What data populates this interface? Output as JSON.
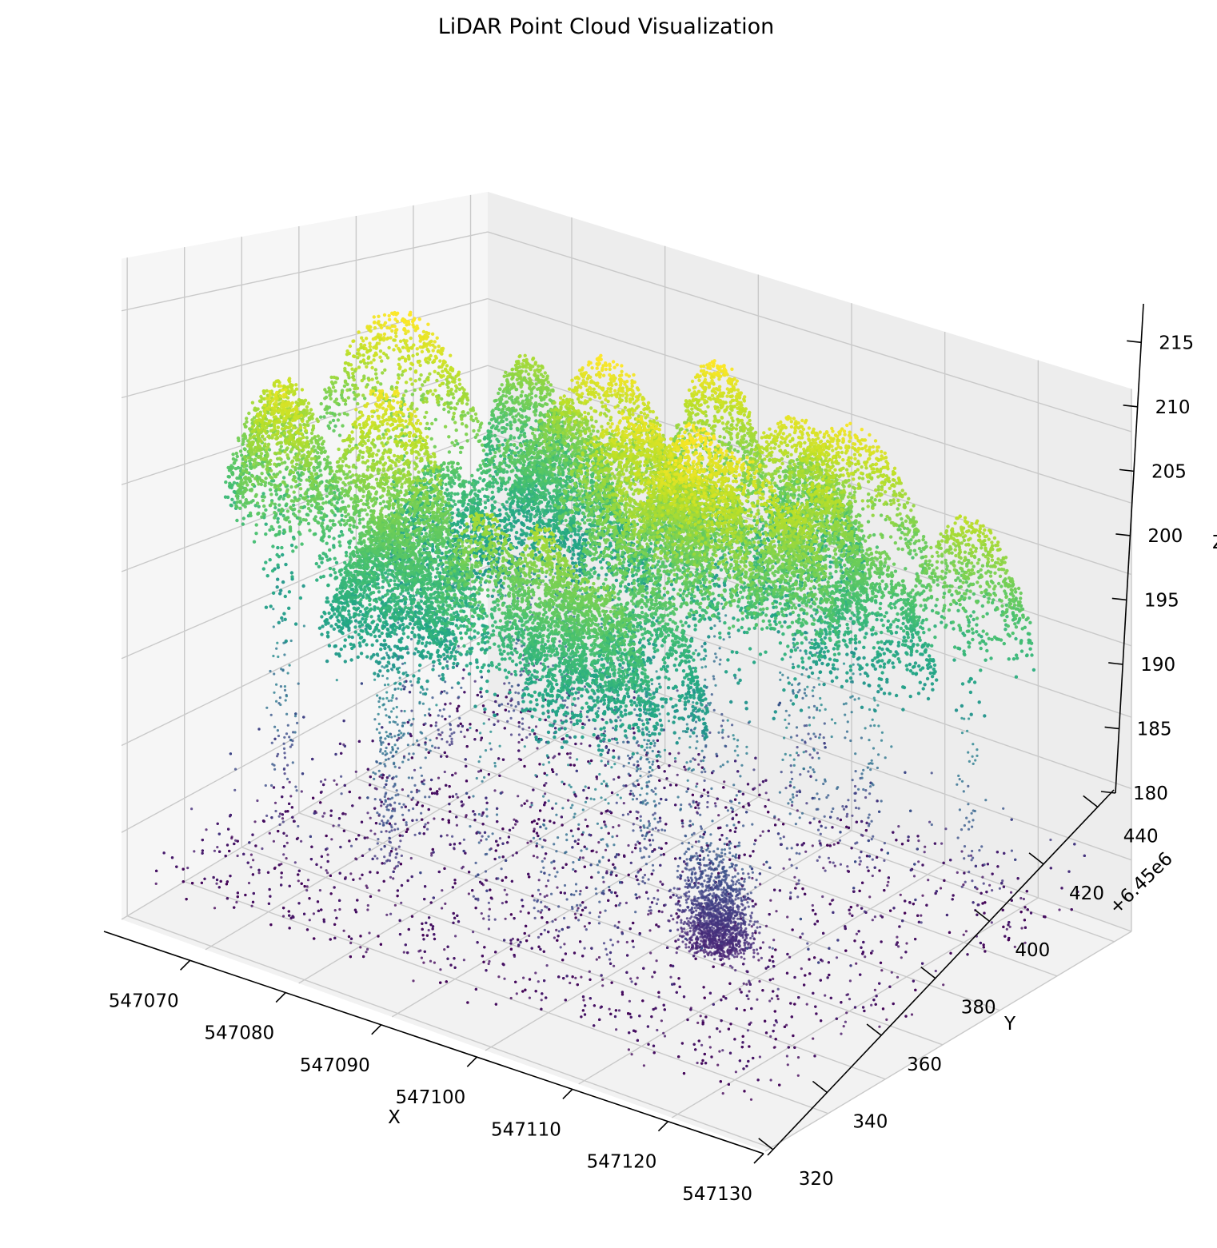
{
  "chart_data": {
    "type": "scatter",
    "title": "LiDAR Point Cloud Visualization",
    "xlabel": "X",
    "ylabel": "Y",
    "zlabel": "Z",
    "y_offset_label": "+6.45e6",
    "x_ticks": [
      "547070",
      "547080",
      "547090",
      "547100",
      "547110",
      "547120",
      "547130"
    ],
    "y_ticks": [
      "320",
      "340",
      "360",
      "380",
      "400",
      "420",
      "440"
    ],
    "z_ticks": [
      "180",
      "185",
      "190",
      "195",
      "200",
      "205",
      "210",
      "215"
    ],
    "xlim": [
      547061,
      547130
    ],
    "ylim": [
      318,
      446
    ],
    "zlim": [
      180,
      218
    ],
    "colormap": "viridis",
    "color_by": "Z",
    "grid": true,
    "colors": {
      "pane_floor": "#f2f2f2",
      "pane_back": "#ededed",
      "pane_left": "#f6f6f6",
      "grid": "#c9c9c9",
      "viridis_low": "#440154",
      "viridis_mid": "#21918c",
      "viridis_high": "#fde725"
    }
  }
}
